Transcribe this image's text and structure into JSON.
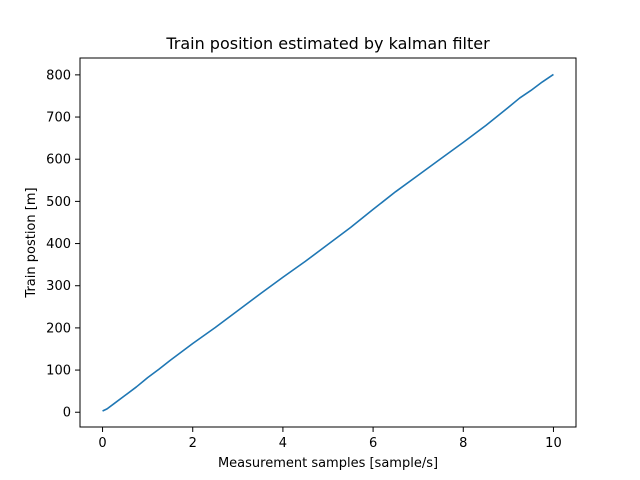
{
  "chart_data": {
    "type": "line",
    "title": "Train position estimated by kalman filter",
    "xlabel": "Measurement samples [sample/s]",
    "ylabel": "Train postion [m]",
    "xlim": [
      -0.5,
      10.5
    ],
    "ylim": [
      -35,
      840
    ],
    "xticks": [
      0,
      2,
      4,
      6,
      8,
      10
    ],
    "yticks": [
      0,
      100,
      200,
      300,
      400,
      500,
      600,
      700,
      800
    ],
    "grid": false,
    "series": [
      {
        "color": "#1f77b4",
        "x": [
          0,
          0.1,
          0.25,
          0.5,
          0.75,
          1,
          1.25,
          1.5,
          2,
          2.5,
          3,
          3.5,
          4,
          4.5,
          5,
          5.5,
          6,
          6.5,
          7,
          7.5,
          8,
          8.5,
          9,
          9.25,
          9.5,
          9.75,
          10
        ],
        "y": [
          3,
          8,
          20,
          40,
          60,
          82,
          102,
          123,
          163,
          201,
          241,
          281,
          320,
          358,
          398,
          438,
          481,
          523,
          562,
          601,
          640,
          680,
          723,
          745,
          763,
          783,
          801
        ]
      }
    ]
  }
}
